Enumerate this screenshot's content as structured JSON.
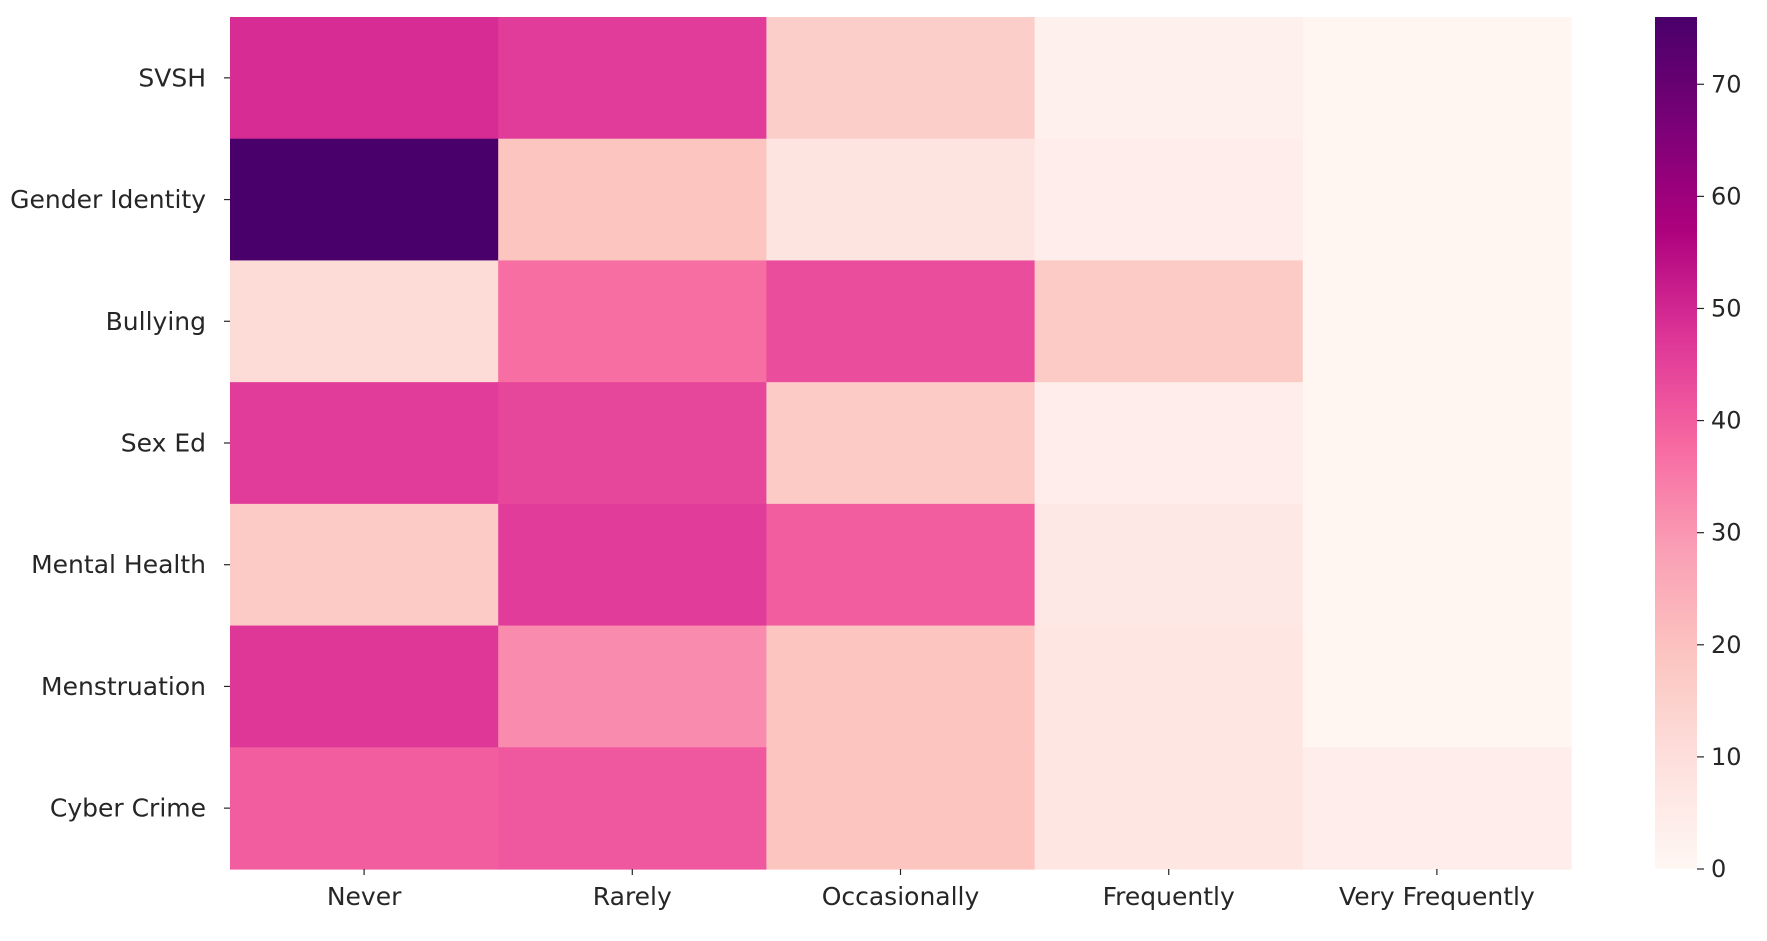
{
  "chart_data": {
    "type": "heatmap",
    "title": "",
    "xlabel": "",
    "ylabel": "",
    "columns": [
      "Never",
      "Rarely",
      "Occasionally",
      "Frequently",
      "Very Frequently"
    ],
    "rows": [
      "SVSH",
      "Gender Identity",
      "Bullying",
      "Sex Ed",
      "Mental Health",
      "Menstruation",
      "Cyber Crime"
    ],
    "values": [
      [
        49,
        46,
        16,
        3,
        1
      ],
      [
        76,
        19,
        8,
        4,
        1
      ],
      [
        11,
        37,
        43,
        17,
        1
      ],
      [
        46,
        44,
        17,
        4,
        1
      ],
      [
        17,
        46,
        40,
        6,
        1
      ],
      [
        47,
        32,
        19,
        7,
        1
      ],
      [
        40,
        41,
        19,
        7,
        4
      ]
    ],
    "colorbar": {
      "min": 0,
      "max": 76,
      "ticks": [
        0,
        10,
        20,
        30,
        40,
        50,
        60,
        70
      ],
      "colormap": "RdPu",
      "stops": [
        "#fff7f3",
        "#fde0dd",
        "#fcc5c0",
        "#fa9fb5",
        "#f768a1",
        "#dd3497",
        "#ae017e",
        "#7a0177",
        "#49006a"
      ]
    }
  }
}
